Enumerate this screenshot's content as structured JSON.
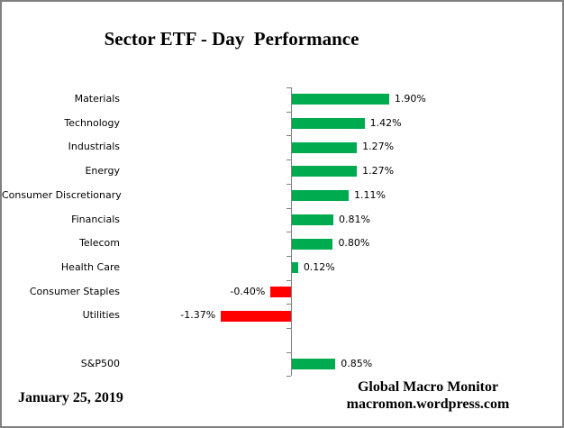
{
  "title": "Sector ETF - Day  Performance",
  "footer": {
    "date": "January 25, 2019",
    "brand_line1": "Global Macro Monitor",
    "brand_line2": "macromon.wordpress.com"
  },
  "colors": {
    "positive_bar": "#00AB4F",
    "negative_bar": "#FF0000",
    "axis": "#808080",
    "frame_border": "#808080",
    "text": "#000000"
  },
  "chart_data": {
    "type": "bar",
    "orientation": "horizontal",
    "title": "Sector ETF - Day  Performance",
    "xlabel": "",
    "ylabel": "",
    "grid": false,
    "legend": false,
    "value_axis_hidden": true,
    "categories": [
      "Materials",
      "Technology",
      "Industrials",
      "Energy",
      "Consumer Discretionary",
      "Financials",
      "Telecom",
      "Health Care",
      "Consumer Staples",
      "Utilities",
      "",
      "S&P500"
    ],
    "values": [
      1.9,
      1.42,
      1.27,
      1.27,
      1.11,
      0.81,
      0.8,
      0.12,
      -0.4,
      -1.37,
      null,
      0.85
    ],
    "data_labels": [
      "1.90%",
      "1.42%",
      "1.27%",
      "1.27%",
      "1.11%",
      "0.81%",
      "0.80%",
      "0.12%",
      "-0.40%",
      "-1.37%",
      "",
      "0.85%"
    ],
    "xlim": [
      -3.3,
      5.3
    ]
  }
}
